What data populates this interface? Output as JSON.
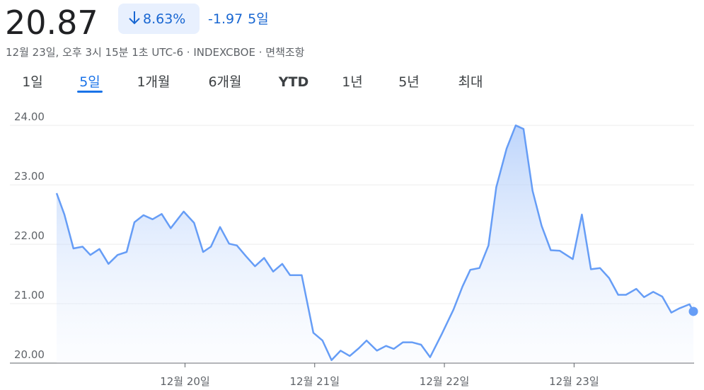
{
  "header": {
    "price": "20.87",
    "change_pct": "8.63%",
    "change": "-1.97",
    "period": "5일",
    "subtitle": "12월 23일, 오후 3시 15분 1초 UTC-6 · INDEXCBOE · 면책조항"
  },
  "tabs": {
    "items": [
      "1일",
      "5일",
      "1개월",
      "6개월",
      "YTD",
      "1년",
      "5년",
      "최대"
    ],
    "selected": 1
  },
  "chart_data": {
    "type": "area",
    "color": "#669df6",
    "x": [
      19.01,
      19.07,
      19.14,
      19.21,
      19.27,
      19.34,
      19.41,
      19.48,
      19.55,
      19.61,
      19.68,
      19.75,
      19.82,
      19.89,
      19.95,
      19.99,
      20.07,
      20.14,
      20.2,
      20.27,
      20.34,
      20.4,
      20.47,
      20.54,
      20.61,
      20.68,
      20.75,
      20.81,
      20.9,
      20.99,
      21.06,
      21.13,
      21.2,
      21.27,
      21.34,
      21.4,
      21.48,
      21.55,
      21.61,
      21.68,
      21.75,
      21.82,
      21.89,
      21.98,
      22.07,
      22.14,
      22.2,
      22.27,
      22.34,
      22.4,
      22.48,
      22.55,
      22.61,
      22.68,
      22.75,
      22.82,
      22.89,
      22.99,
      23.06,
      23.13,
      23.2,
      23.27,
      23.34,
      23.4,
      23.48,
      23.54,
      23.61,
      23.68,
      23.75,
      23.81,
      23.89,
      23.92
    ],
    "values": [
      22.86,
      22.5,
      21.93,
      21.96,
      21.82,
      21.92,
      21.67,
      21.82,
      21.87,
      22.37,
      22.49,
      22.42,
      22.51,
      22.27,
      22.44,
      22.55,
      22.36,
      21.87,
      21.96,
      22.29,
      22.01,
      21.98,
      21.8,
      21.63,
      21.77,
      21.54,
      21.67,
      21.48,
      21.48,
      20.51,
      20.38,
      20.05,
      20.21,
      20.12,
      20.25,
      20.38,
      20.21,
      20.29,
      20.24,
      20.35,
      20.35,
      20.31,
      20.1,
      20.49,
      20.9,
      21.29,
      21.57,
      21.6,
      21.98,
      22.96,
      23.61,
      24.0,
      23.94,
      22.9,
      22.31,
      21.9,
      21.89,
      21.75,
      22.5,
      21.58,
      21.6,
      21.43,
      21.15,
      21.15,
      21.25,
      21.11,
      21.2,
      21.12,
      20.85,
      20.92,
      20.99,
      20.87
    ],
    "xlim": [
      19.01,
      23.92
    ],
    "xticks": [
      {
        "value": 20,
        "label": "12월 20일"
      },
      {
        "value": 21,
        "label": "12월 21일"
      },
      {
        "value": 22,
        "label": "12월 22일"
      },
      {
        "value": 23,
        "label": "12월 23일"
      }
    ],
    "ylim": [
      20,
      24.3
    ],
    "yticks": [
      {
        "value": 20,
        "label": "20.00"
      },
      {
        "value": 21,
        "label": "21.00"
      },
      {
        "value": 22,
        "label": "22.00"
      },
      {
        "value": 23,
        "label": "23.00"
      },
      {
        "value": 24,
        "label": "24.00"
      }
    ],
    "grid": true
  }
}
